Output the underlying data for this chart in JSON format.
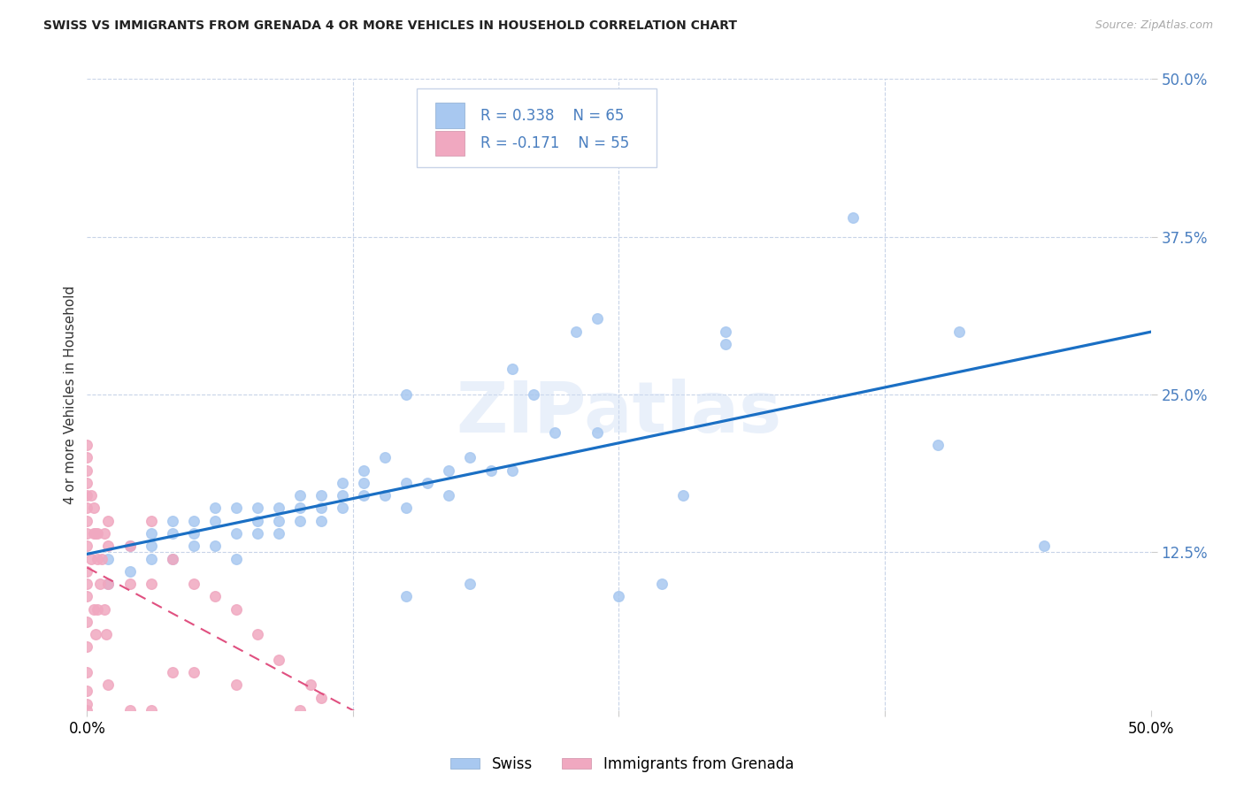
{
  "title": "SWISS VS IMMIGRANTS FROM GRENADA 4 OR MORE VEHICLES IN HOUSEHOLD CORRELATION CHART",
  "source": "Source: ZipAtlas.com",
  "ylabel": "4 or more Vehicles in Household",
  "xlim": [
    0.0,
    0.5
  ],
  "ylim": [
    0.0,
    0.5
  ],
  "xtick_pos": [
    0.0,
    0.125,
    0.25,
    0.375,
    0.5
  ],
  "xtick_labels": [
    "0.0%",
    "",
    "",
    "",
    "50.0%"
  ],
  "ytick_pos_left": [],
  "ytick_labels_left": [],
  "ytick_pos_right": [
    0.125,
    0.25,
    0.375,
    0.5
  ],
  "ytick_labels_right": [
    "12.5%",
    "25.0%",
    "37.5%",
    "50.0%"
  ],
  "swiss_color": "#a8c8f0",
  "grenada_color": "#f0a8c0",
  "swiss_line_color": "#1a6fc4",
  "grenada_line_color": "#e05080",
  "tick_color": "#4a7fc0",
  "label_color": "#000000",
  "swiss_R": "0.338",
  "swiss_N": "65",
  "grenada_R": "-0.171",
  "grenada_N": "55",
  "watermark": "ZIPatlas",
  "swiss_x": [
    0.01,
    0.01,
    0.02,
    0.02,
    0.03,
    0.03,
    0.03,
    0.04,
    0.04,
    0.04,
    0.05,
    0.05,
    0.05,
    0.06,
    0.06,
    0.06,
    0.07,
    0.07,
    0.07,
    0.08,
    0.08,
    0.08,
    0.09,
    0.09,
    0.09,
    0.1,
    0.1,
    0.1,
    0.11,
    0.11,
    0.11,
    0.12,
    0.12,
    0.12,
    0.13,
    0.13,
    0.13,
    0.14,
    0.14,
    0.15,
    0.15,
    0.15,
    0.16,
    0.17,
    0.17,
    0.18,
    0.18,
    0.19,
    0.2,
    0.21,
    0.22,
    0.23,
    0.24,
    0.25,
    0.27,
    0.28,
    0.3,
    0.3,
    0.36,
    0.4,
    0.41,
    0.45,
    0.24,
    0.2,
    0.15
  ],
  "swiss_y": [
    0.1,
    0.12,
    0.11,
    0.13,
    0.12,
    0.14,
    0.13,
    0.12,
    0.14,
    0.15,
    0.13,
    0.15,
    0.14,
    0.13,
    0.15,
    0.16,
    0.14,
    0.16,
    0.12,
    0.14,
    0.16,
    0.15,
    0.14,
    0.16,
    0.15,
    0.15,
    0.17,
    0.16,
    0.15,
    0.17,
    0.16,
    0.16,
    0.18,
    0.17,
    0.17,
    0.19,
    0.18,
    0.17,
    0.2,
    0.09,
    0.16,
    0.18,
    0.18,
    0.17,
    0.19,
    0.1,
    0.2,
    0.19,
    0.19,
    0.25,
    0.22,
    0.3,
    0.22,
    0.09,
    0.1,
    0.17,
    0.29,
    0.3,
    0.39,
    0.21,
    0.3,
    0.13,
    0.31,
    0.27,
    0.25
  ],
  "grenada_x": [
    0.0,
    0.0,
    0.0,
    0.0,
    0.0,
    0.0,
    0.0,
    0.0,
    0.0,
    0.0,
    0.0,
    0.0,
    0.0,
    0.0,
    0.0,
    0.0,
    0.0,
    0.0,
    0.002,
    0.002,
    0.003,
    0.003,
    0.003,
    0.004,
    0.004,
    0.005,
    0.005,
    0.005,
    0.006,
    0.007,
    0.008,
    0.008,
    0.009,
    0.01,
    0.01,
    0.01,
    0.01,
    0.02,
    0.02,
    0.02,
    0.03,
    0.03,
    0.03,
    0.04,
    0.04,
    0.05,
    0.05,
    0.06,
    0.07,
    0.07,
    0.08,
    0.09,
    0.1,
    0.105,
    0.11
  ],
  "grenada_y": [
    0.19,
    0.18,
    0.17,
    0.16,
    0.15,
    0.14,
    0.13,
    0.11,
    0.1,
    0.09,
    0.07,
    0.05,
    0.03,
    0.015,
    0.005,
    0.0,
    0.2,
    0.21,
    0.17,
    0.12,
    0.16,
    0.14,
    0.08,
    0.14,
    0.06,
    0.14,
    0.12,
    0.08,
    0.1,
    0.12,
    0.14,
    0.08,
    0.06,
    0.15,
    0.13,
    0.1,
    0.02,
    0.13,
    0.1,
    0.0,
    0.15,
    0.1,
    0.0,
    0.12,
    0.03,
    0.1,
    0.03,
    0.09,
    0.08,
    0.02,
    0.06,
    0.04,
    0.0,
    0.02,
    0.01
  ]
}
